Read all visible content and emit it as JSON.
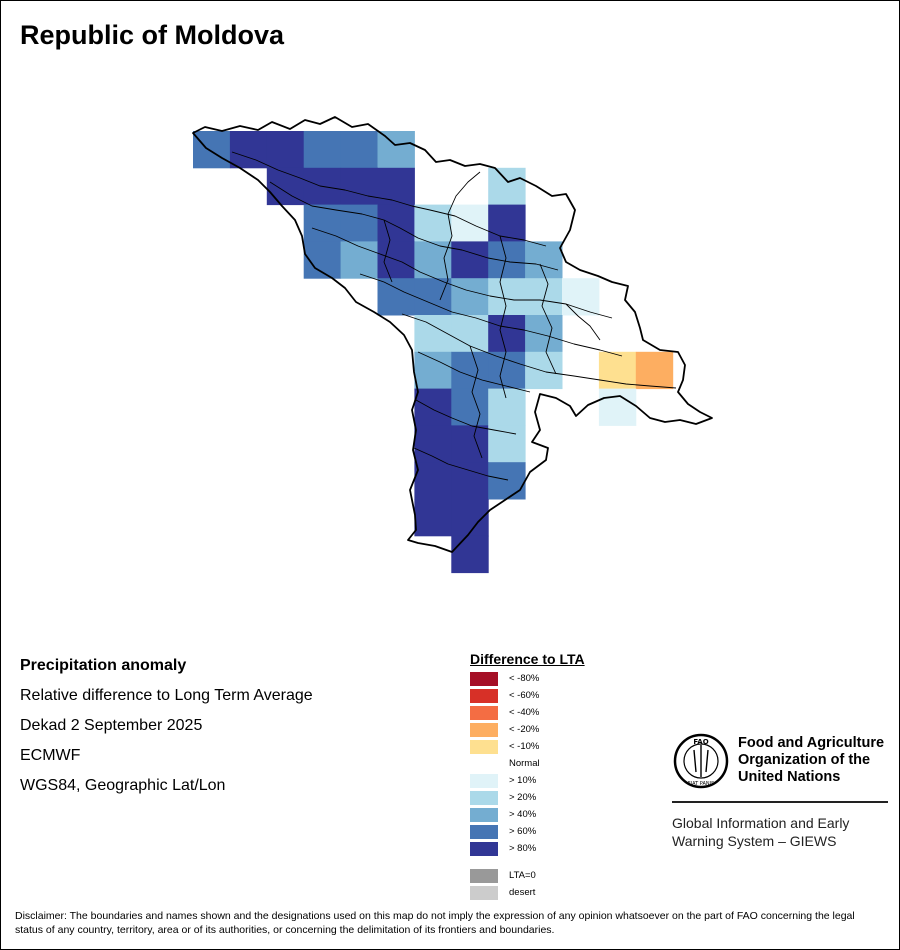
{
  "title": "Republic of Moldova",
  "info": {
    "heading": "Precipitation anomaly",
    "line1": "Relative difference to Long Term Average",
    "line2": "Dekad 2 September 2025",
    "line3": "ECMWF",
    "line4": "WGS84, Geographic Lat/Lon"
  },
  "legend": {
    "title": "Difference to LTA",
    "items": [
      {
        "label": "< -80%",
        "color": "#a50f26"
      },
      {
        "label": "< -60%",
        "color": "#d73027"
      },
      {
        "label": "< -40%",
        "color": "#f46d43"
      },
      {
        "label": "< -20%",
        "color": "#fdae61"
      },
      {
        "label": "< -10%",
        "color": "#fee090"
      },
      {
        "label": "Normal",
        "color": "#ffffff"
      },
      {
        "label": "> 10%",
        "color": "#e0f3f8"
      },
      {
        "label": "> 20%",
        "color": "#abd9e9"
      },
      {
        "label": "> 40%",
        "color": "#74add1"
      },
      {
        "label": "> 60%",
        "color": "#4575b4"
      },
      {
        "label": "> 80%",
        "color": "#313695"
      }
    ],
    "extra": [
      {
        "label": "LTA=0",
        "color": "#999999"
      },
      {
        "label": "desert",
        "color": "#cccccc"
      }
    ]
  },
  "fao": {
    "name_line1": "Food and Agriculture",
    "name_line2": "Organization of the",
    "name_line3": "United Nations",
    "giews_line1": "Global Information and Early",
    "giews_line2": "Warning System – GIEWS",
    "logo_text": "FAO",
    "logo_motto": "FIAT PANIS"
  },
  "disclaimer": "Disclaimer: The boundaries and names shown and the designations used on this map do not imply the expression of any opinion whatsoever on the part of FAO concerning the legal status of any country, territory, area or of its authorities, or concerning the delimitation of its frontiers and boundaries.",
  "grid": {
    "rows": [
      {
        "row": 0,
        "cells": [
          {
            "col": 0,
            "v": 60
          },
          {
            "col": 1,
            "v": 80
          },
          {
            "col": 2,
            "v": 80
          },
          {
            "col": 3,
            "v": 60
          },
          {
            "col": 4,
            "v": 60
          },
          {
            "col": 5,
            "v": 40
          }
        ]
      },
      {
        "row": 1,
        "cells": [
          {
            "col": 2,
            "v": 80
          },
          {
            "col": 3,
            "v": 80
          },
          {
            "col": 4,
            "v": 80
          },
          {
            "col": 5,
            "v": 80
          },
          {
            "col": 8,
            "v": 20
          }
        ]
      },
      {
        "row": 2,
        "cells": [
          {
            "col": 3,
            "v": 60
          },
          {
            "col": 4,
            "v": 60
          },
          {
            "col": 5,
            "v": 80
          },
          {
            "col": 6,
            "v": 20
          },
          {
            "col": 7,
            "v": 10
          },
          {
            "col": 8,
            "v": 80
          }
        ]
      },
      {
        "row": 3,
        "cells": [
          {
            "col": 3,
            "v": 60
          },
          {
            "col": 4,
            "v": 40
          },
          {
            "col": 5,
            "v": 80
          },
          {
            "col": 6,
            "v": 40
          },
          {
            "col": 7,
            "v": 80
          },
          {
            "col": 8,
            "v": 60
          },
          {
            "col": 9,
            "v": 40
          }
        ]
      },
      {
        "row": 4,
        "cells": [
          {
            "col": 5,
            "v": 60
          },
          {
            "col": 6,
            "v": 60
          },
          {
            "col": 7,
            "v": 40
          },
          {
            "col": 8,
            "v": 20
          },
          {
            "col": 9,
            "v": 20
          },
          {
            "col": 10,
            "v": 10
          }
        ]
      },
      {
        "row": 5,
        "cells": [
          {
            "col": 6,
            "v": 20
          },
          {
            "col": 7,
            "v": 20
          },
          {
            "col": 8,
            "v": 80
          },
          {
            "col": 9,
            "v": 40
          }
        ]
      },
      {
        "row": 6,
        "cells": [
          {
            "col": 6,
            "v": 40
          },
          {
            "col": 7,
            "v": 60
          },
          {
            "col": 8,
            "v": 60
          },
          {
            "col": 9,
            "v": 20
          },
          {
            "col": 11,
            "v": -10
          },
          {
            "col": 12,
            "v": -20
          }
        ]
      },
      {
        "row": 7,
        "cells": [
          {
            "col": 6,
            "v": 80
          },
          {
            "col": 7,
            "v": 60
          },
          {
            "col": 8,
            "v": 20
          },
          {
            "col": 11,
            "v": 10
          }
        ]
      },
      {
        "row": 8,
        "cells": [
          {
            "col": 6,
            "v": 80
          },
          {
            "col": 7,
            "v": 80
          },
          {
            "col": 8,
            "v": 20
          }
        ]
      },
      {
        "row": 9,
        "cells": [
          {
            "col": 6,
            "v": 80
          },
          {
            "col": 7,
            "v": 80
          },
          {
            "col": 8,
            "v": 60
          }
        ]
      },
      {
        "row": 10,
        "cells": [
          {
            "col": 6,
            "v": 80
          },
          {
            "col": 7,
            "v": 80
          }
        ]
      },
      {
        "row": 11,
        "cells": [
          {
            "col": 7,
            "v": 80
          }
        ]
      }
    ]
  }
}
